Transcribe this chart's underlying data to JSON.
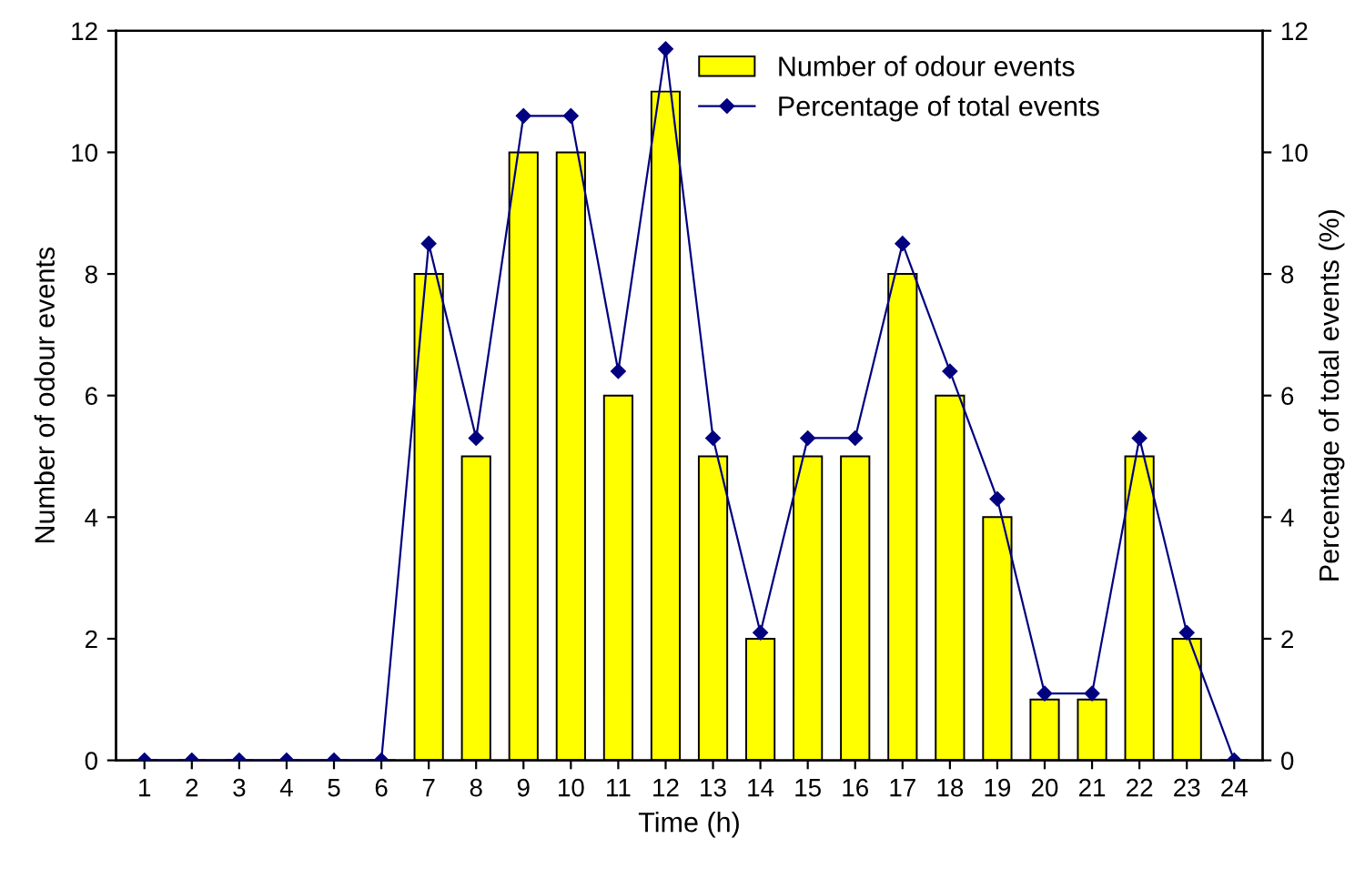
{
  "chart_data": {
    "type": "bar",
    "xlabel": "Time (h)",
    "ylabel": "Number of odour events",
    "y2label": "Percentage of total events (%)",
    "categories": [
      "1",
      "2",
      "3",
      "4",
      "5",
      "6",
      "7",
      "8",
      "9",
      "10",
      "11",
      "12",
      "13",
      "14",
      "15",
      "16",
      "17",
      "18",
      "19",
      "20",
      "21",
      "22",
      "23",
      "24"
    ],
    "series": [
      {
        "name": "Number of odour events",
        "color": "#ffff00",
        "values": [
          0,
          0,
          0,
          0,
          0,
          0,
          8,
          5,
          10,
          10,
          6,
          11,
          5,
          2,
          5,
          5,
          8,
          6,
          4,
          1,
          1,
          5,
          2,
          0
        ]
      },
      {
        "name": "Percentage of total events",
        "type": "line",
        "axis": "y2",
        "color": "#000080",
        "marker": "diamond",
        "line_style": "solid",
        "values": [
          0,
          0,
          0,
          0,
          0,
          0,
          8.5,
          5.3,
          10.6,
          10.6,
          6.4,
          11.7,
          5.3,
          2.1,
          5.3,
          5.3,
          8.5,
          6.4,
          4.3,
          1.1,
          1.1,
          5.3,
          2.1,
          0
        ]
      }
    ],
    "ylim": [
      0,
      12
    ],
    "yticks": [
      0,
      2,
      4,
      6,
      8,
      10,
      12
    ],
    "y2lim": [
      0,
      12
    ],
    "y2ticks": [
      0,
      2,
      4,
      6,
      8,
      10,
      12
    ],
    "grid": false,
    "legend": "top right"
  }
}
